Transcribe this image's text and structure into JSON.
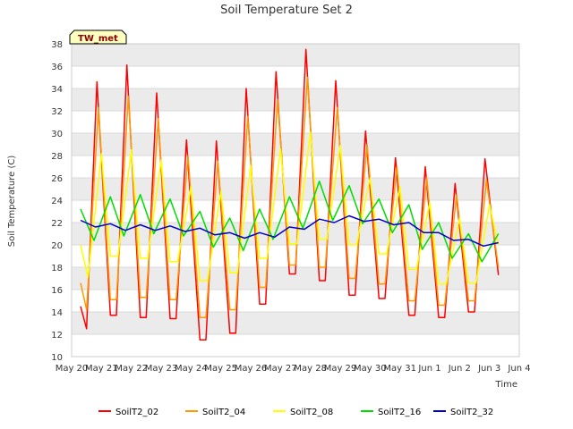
{
  "chart_data": {
    "type": "line",
    "title": "Soil Temperature Set 2",
    "xlabel": "Time",
    "ylabel": "Soil Temperature (C)",
    "station_label": "TW_met",
    "ylim": [
      10,
      38
    ],
    "y_ticks": [
      10,
      12,
      14,
      16,
      18,
      20,
      22,
      24,
      26,
      28,
      30,
      32,
      34,
      36,
      38
    ],
    "xlim": [
      0,
      15
    ],
    "x_tick_labels": [
      "May 20",
      "May 21",
      "May 22",
      "May 23",
      "May 24",
      "May 25",
      "May 26",
      "May 27",
      "May 28",
      "May 29",
      "May 30",
      "May 31",
      "Jun 1",
      "Jun 2",
      "Jun 3",
      "Jun 4"
    ],
    "grid": "horizontal bands",
    "legend_position": "bottom",
    "series": [
      {
        "name": "SoilT2_02",
        "color": "#ff0000",
        "x": [
          0.3,
          0.5,
          0.85,
          1.3,
          1.5,
          1.85,
          2.3,
          2.5,
          2.85,
          3.3,
          3.5,
          3.85,
          4.3,
          4.5,
          4.85,
          5.3,
          5.5,
          5.85,
          6.3,
          6.5,
          6.85,
          7.3,
          7.5,
          7.85,
          8.3,
          8.5,
          8.85,
          9.3,
          9.5,
          9.85,
          10.3,
          10.5,
          10.85,
          11.3,
          11.5,
          11.85,
          12.3,
          12.5,
          12.85,
          13.3,
          13.5,
          13.85,
          14.3
        ],
        "y": [
          14.5,
          12.5,
          34.6,
          13.7,
          13.7,
          36.1,
          13.5,
          13.5,
          33.6,
          13.4,
          13.4,
          29.4,
          11.5,
          11.5,
          29.3,
          12.1,
          12.1,
          34.0,
          14.7,
          14.7,
          35.5,
          17.4,
          17.4,
          37.5,
          16.8,
          16.8,
          34.7,
          15.5,
          15.5,
          30.2,
          15.2,
          15.2,
          27.8,
          13.7,
          13.7,
          27.0,
          13.5,
          13.5,
          25.5,
          14.0,
          14.0,
          27.7,
          17.3
        ]
      },
      {
        "name": "SoilT2_04",
        "color": "#ff9900",
        "x": [
          0.3,
          0.5,
          0.9,
          1.3,
          1.5,
          1.9,
          2.3,
          2.5,
          2.9,
          3.3,
          3.5,
          3.9,
          4.3,
          4.5,
          4.9,
          5.3,
          5.5,
          5.9,
          6.3,
          6.5,
          6.9,
          7.3,
          7.5,
          7.9,
          8.3,
          8.5,
          8.9,
          9.3,
          9.5,
          9.9,
          10.3,
          10.5,
          10.9,
          11.3,
          11.5,
          11.9,
          12.3,
          12.5,
          12.9,
          13.3,
          13.5,
          13.9,
          14.3
        ],
        "y": [
          16.6,
          14.2,
          32.3,
          15.1,
          15.1,
          33.3,
          15.3,
          15.3,
          31.3,
          15.1,
          15.1,
          28.0,
          13.5,
          13.5,
          27.5,
          14.2,
          14.2,
          31.5,
          16.2,
          16.2,
          33.0,
          18.2,
          18.2,
          35.0,
          18.0,
          18.0,
          32.3,
          17.0,
          17.0,
          29.0,
          16.5,
          16.5,
          27.0,
          15.0,
          15.0,
          26.0,
          14.6,
          14.6,
          24.5,
          15.0,
          15.0,
          25.8,
          18.0
        ]
      },
      {
        "name": "SoilT2_08",
        "color": "#ffff00",
        "x": [
          0.3,
          0.55,
          1.0,
          1.3,
          1.55,
          2.0,
          2.3,
          2.55,
          3.0,
          3.3,
          3.55,
          4.0,
          4.3,
          4.55,
          5.0,
          5.3,
          5.55,
          6.0,
          6.3,
          6.55,
          7.0,
          7.3,
          7.55,
          8.0,
          8.3,
          8.55,
          9.0,
          9.3,
          9.55,
          10.0,
          10.3,
          10.55,
          11.0,
          11.3,
          11.55,
          12.0,
          12.3,
          12.55,
          13.0,
          13.3,
          13.55,
          14.0,
          14.3
        ],
        "y": [
          20.0,
          17.1,
          28.2,
          19.0,
          19.0,
          28.5,
          18.8,
          18.8,
          27.6,
          18.5,
          18.5,
          25.2,
          16.8,
          16.8,
          24.8,
          17.5,
          17.5,
          27.1,
          18.8,
          18.8,
          28.6,
          20.1,
          20.1,
          30.1,
          20.5,
          20.5,
          28.9,
          20.0,
          20.0,
          26.0,
          19.2,
          19.2,
          25.2,
          17.8,
          17.8,
          23.8,
          16.5,
          16.5,
          22.4,
          16.6,
          16.6,
          23.6,
          20.0
        ]
      },
      {
        "name": "SoilT2_16",
        "color": "#00dd00",
        "x": [
          0.3,
          0.75,
          1.3,
          1.75,
          2.3,
          2.75,
          3.3,
          3.75,
          4.3,
          4.75,
          5.3,
          5.75,
          6.3,
          6.75,
          7.3,
          7.75,
          8.3,
          8.75,
          9.3,
          9.75,
          10.3,
          10.75,
          11.3,
          11.75,
          12.3,
          12.75,
          13.3,
          13.75,
          14.3
        ],
        "y": [
          23.2,
          20.4,
          24.3,
          20.8,
          24.5,
          21.0,
          24.1,
          20.8,
          23.0,
          19.8,
          22.4,
          19.5,
          23.2,
          20.5,
          24.3,
          21.5,
          25.7,
          22.2,
          25.3,
          21.9,
          24.1,
          21.1,
          23.6,
          19.6,
          22.0,
          18.8,
          21.0,
          18.5,
          21.0
        ]
      },
      {
        "name": "SoilT2_32",
        "color": "#0000cc",
        "x": [
          0.3,
          0.8,
          1.3,
          1.8,
          2.3,
          2.8,
          3.3,
          3.8,
          4.3,
          4.8,
          5.3,
          5.8,
          6.3,
          6.8,
          7.3,
          7.8,
          8.3,
          8.8,
          9.3,
          9.8,
          10.3,
          10.8,
          11.3,
          11.8,
          12.3,
          12.8,
          13.3,
          13.8,
          14.3
        ],
        "y": [
          22.2,
          21.6,
          21.9,
          21.3,
          21.8,
          21.3,
          21.7,
          21.2,
          21.5,
          20.9,
          21.1,
          20.6,
          21.1,
          20.7,
          21.6,
          21.4,
          22.3,
          22.0,
          22.6,
          22.1,
          22.3,
          21.8,
          22.0,
          21.1,
          21.1,
          20.4,
          20.5,
          19.9,
          20.2
        ]
      }
    ]
  }
}
